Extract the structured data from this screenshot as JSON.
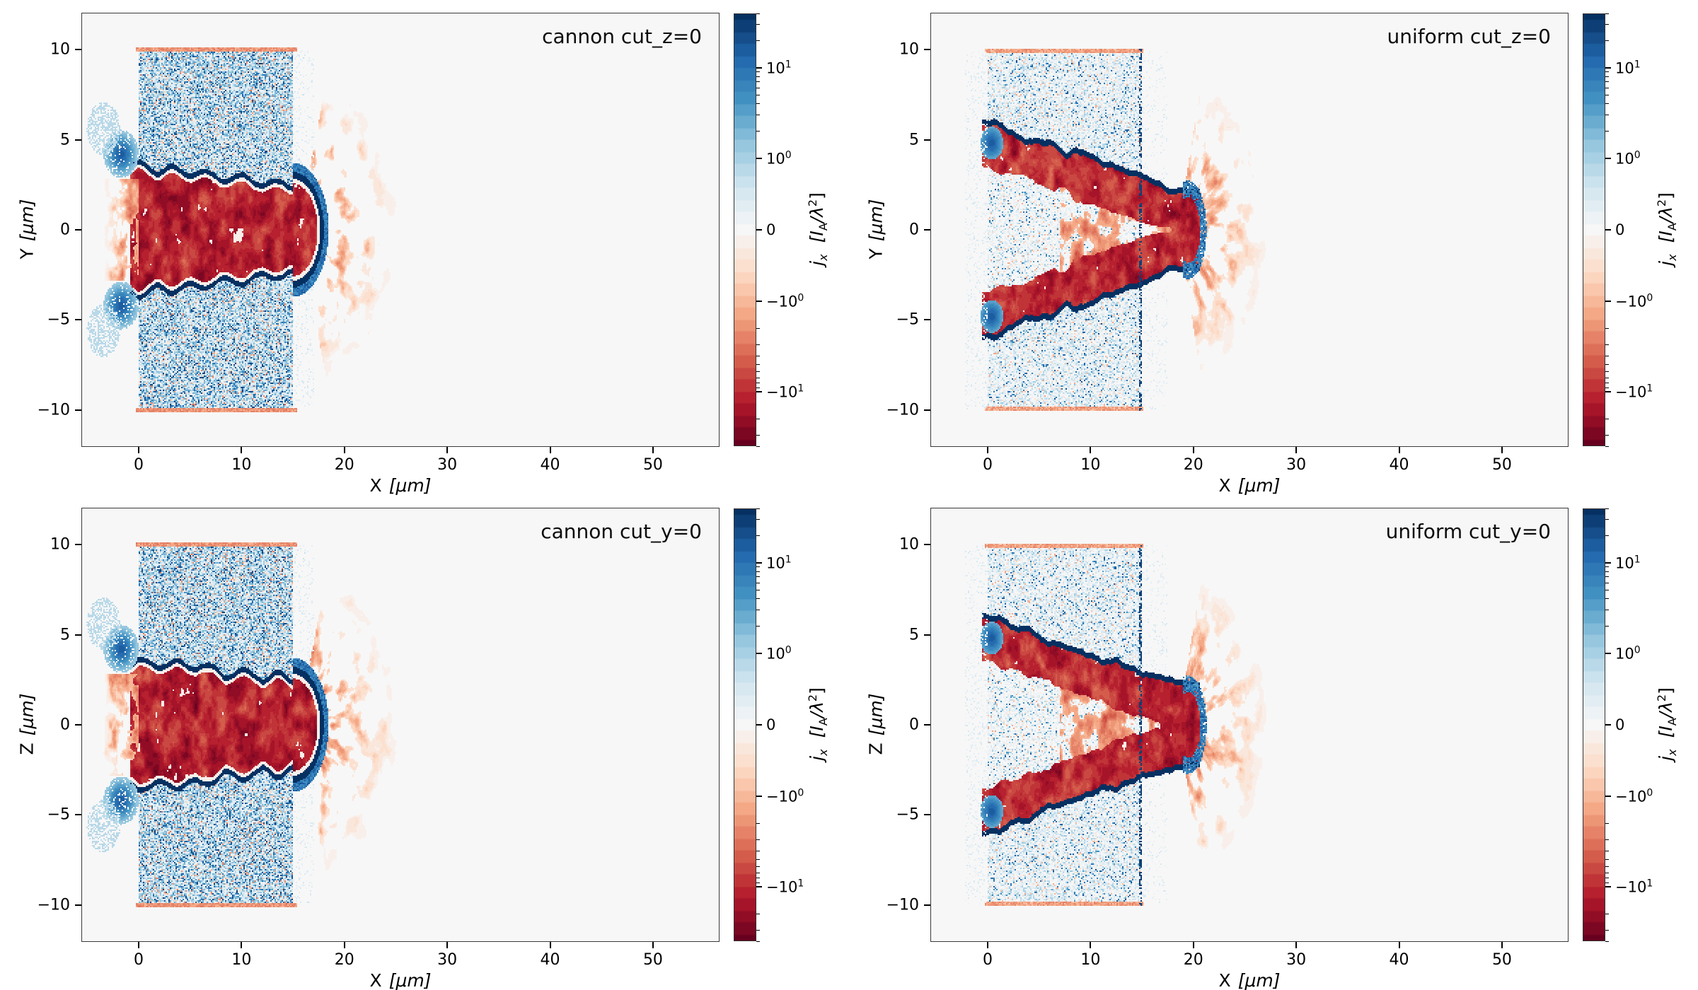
{
  "figure": {
    "background": "#ffffff"
  },
  "chart_data": {
    "type": "heatmap",
    "description": "2x2 grid of simulation current-density slices j_x comparing 'cannon' and 'uniform' targets on cut planes z=0 (top row) and y=0 (bottom row). Diverging blue-positive / red-negative colormap on a symmetric log scale. Each panel shows a speckled plasma slab from x=0 to 15 um spanning y(or z)=-10 to 10 um, a strongly negative (red) channel carved around the axis with dark-blue return-current sheaths along its walls, and a faint red spray fanning out beyond x~18 um.",
    "colormap": "RdBu",
    "color_scale": {
      "type": "symlog",
      "linthresh": 1,
      "linear_fraction": 0.33,
      "log_decades": 1.6,
      "vmin": -40,
      "vmax": 40,
      "levels": 36
    },
    "axes": {
      "x_range": [
        -5.5,
        56.4
      ],
      "y_range": [
        -12.0,
        12.0
      ],
      "x_ticks": [
        0,
        10,
        20,
        30,
        40,
        50
      ],
      "x_tick_labels": [
        "0",
        "10",
        "20",
        "30",
        "40",
        "50"
      ],
      "y_ticks": [
        10,
        5,
        0,
        -5,
        -10
      ],
      "y_tick_labels": [
        "10",
        "5",
        "0",
        "−5",
        "−10"
      ]
    },
    "panels": [
      {
        "title": "cannon cut_z=0",
        "xlabel_name": "X",
        "xlabel_unit": "[μm]",
        "ylabel_name": "Y",
        "ylabel_unit": "[μm]",
        "variant": "cannon",
        "seed": 11,
        "features": {
          "slab": {
            "x": [
              0,
              15
            ],
            "y": [
              -10,
              10
            ]
          },
          "channel": {
            "type": "cone",
            "y_open": 3.6,
            "y_tip": 2.7,
            "x_start": -0.8,
            "x_cap": 17.4
          },
          "spray": {
            "r_max": 10
          }
        }
      },
      {
        "title": "uniform cut_z=0",
        "xlabel_name": "X",
        "xlabel_unit": "[μm]",
        "ylabel_name": "Y",
        "ylabel_unit": "[μm]",
        "variant": "uniform",
        "seed": 23,
        "features": {
          "slab": {
            "x": [
              0,
              15
            ],
            "y": [
              -10,
              10
            ]
          },
          "channel": {
            "type": "vee",
            "y_open": 4.8,
            "y_vertex": 0.9,
            "x_vertex": 19.5,
            "arm_width": 1.7
          },
          "spray": {
            "r_max": 9
          }
        }
      },
      {
        "title": "cannon cut_y=0",
        "xlabel_name": "X",
        "xlabel_unit": "[μm]",
        "ylabel_name": "Z",
        "ylabel_unit": "[μm]",
        "variant": "cannon",
        "seed": 37,
        "features": {
          "slab": {
            "x": [
              0,
              15
            ],
            "y": [
              -10,
              10
            ]
          },
          "channel": {
            "type": "cone",
            "y_open": 3.6,
            "y_tip": 2.7,
            "x_start": -0.8,
            "x_cap": 17.4
          },
          "spray": {
            "r_max": 10
          }
        }
      },
      {
        "title": "uniform cut_y=0",
        "xlabel_name": "X",
        "xlabel_unit": "[μm]",
        "ylabel_name": "Z",
        "ylabel_unit": "[μm]",
        "variant": "uniform",
        "seed": 53,
        "features": {
          "slab": {
            "x": [
              0,
              15
            ],
            "y": [
              -10,
              10
            ]
          },
          "channel": {
            "type": "vee",
            "y_open": 4.8,
            "y_vertex": 0.9,
            "x_vertex": 19.5,
            "arm_width": 1.7
          },
          "spray": {
            "r_max": 9
          }
        }
      }
    ]
  },
  "colorbar": {
    "label_sym": "j",
    "label_sym_sub": "x",
    "label_unit_pre": "[I",
    "label_unit_sub": "A",
    "label_unit_mid": "/λ",
    "label_unit_sup": "2",
    "label_unit_post": "]",
    "ticks": [
      {
        "text": "10",
        "sup": "1",
        "value": 10
      },
      {
        "text": "10",
        "sup": "0",
        "value": 1
      },
      {
        "text": "0",
        "value": 0
      },
      {
        "text": "−10",
        "sup": "0",
        "value": -1
      },
      {
        "text": "−10",
        "sup": "1",
        "value": -10
      }
    ],
    "minor_ticks": [
      2,
      3,
      4,
      5,
      6,
      7,
      8,
      9,
      20,
      30,
      40
    ]
  }
}
